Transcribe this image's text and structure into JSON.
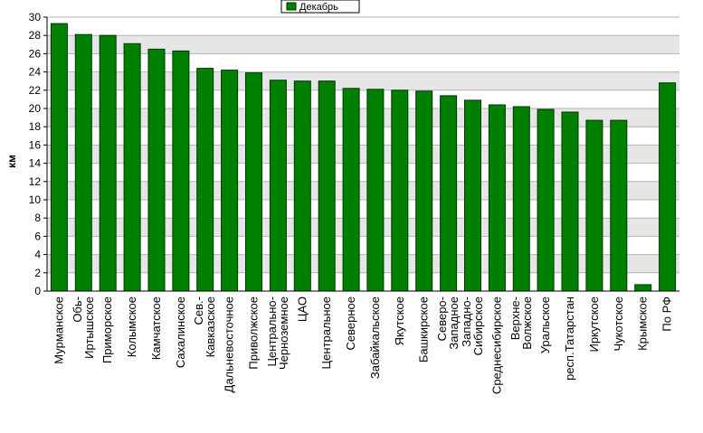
{
  "chart_data": {
    "type": "bar",
    "title": "",
    "xlabel": "",
    "ylabel": "км",
    "ylim": [
      0,
      30
    ],
    "yticks": [
      0,
      2,
      4,
      6,
      8,
      10,
      12,
      14,
      16,
      18,
      20,
      22,
      24,
      26,
      28,
      30
    ],
    "grid": true,
    "legend_position": "top-center",
    "colors": {
      "bar": "#008000",
      "bar_edge": "#003300",
      "plot_bg_even": "#ffffff",
      "plot_bg_odd": "#e6e6e6",
      "grid": "#b4b4b4"
    },
    "categories": [
      "Мурманское",
      "Обь-Иртышское",
      "Приморское",
      "Колымское",
      "Камчатское",
      "Сахалинское",
      "Сев.-Кавказское",
      "Дальневосточное",
      "Приволжское",
      "Центрально-Черноземное",
      "ЦАО",
      "Центральное",
      "Северное",
      "Забайкальское",
      "Якутское",
      "Башкирское",
      "Северо-Западное",
      "Западно-Сибирское",
      "Среднесибирское",
      "Верхне-Волжское",
      "Уральское",
      "респ.Татарстан",
      "Иркутское",
      "Чукотское",
      "Крымское",
      "По РФ"
    ],
    "category_label_lines": [
      [
        "Мурманское"
      ],
      [
        "Обь-",
        "Иртышское"
      ],
      [
        "Приморское"
      ],
      [
        "Колымское"
      ],
      [
        "Камчатское"
      ],
      [
        "Сахалинское"
      ],
      [
        "Сев.-",
        "Кавказское"
      ],
      [
        "Дальневосточное"
      ],
      [
        "Приволжское"
      ],
      [
        "Центрально-",
        "Черноземное"
      ],
      [
        "ЦАО"
      ],
      [
        "Центральное"
      ],
      [
        "Северное"
      ],
      [
        "Забайкальское"
      ],
      [
        "Якутское"
      ],
      [
        "Башкирское"
      ],
      [
        "Северо-",
        "Западное"
      ],
      [
        "Западно-",
        "Сибирское"
      ],
      [
        "Среднесибирское"
      ],
      [
        "Верхне-",
        "Волжское"
      ],
      [
        "Уральское"
      ],
      [
        "респ.Татарстан"
      ],
      [
        "Иркутское"
      ],
      [
        "Чукотское"
      ],
      [
        "Крымское"
      ],
      [
        "По РФ"
      ]
    ],
    "series": [
      {
        "name": "Декабрь",
        "values": [
          29.3,
          28.1,
          28.0,
          27.1,
          26.5,
          26.3,
          24.4,
          24.2,
          23.9,
          23.1,
          23.0,
          23.0,
          22.2,
          22.1,
          22.0,
          21.9,
          21.4,
          20.9,
          20.4,
          20.2,
          19.9,
          19.6,
          18.7,
          18.7,
          0.7,
          22.8
        ]
      }
    ]
  }
}
